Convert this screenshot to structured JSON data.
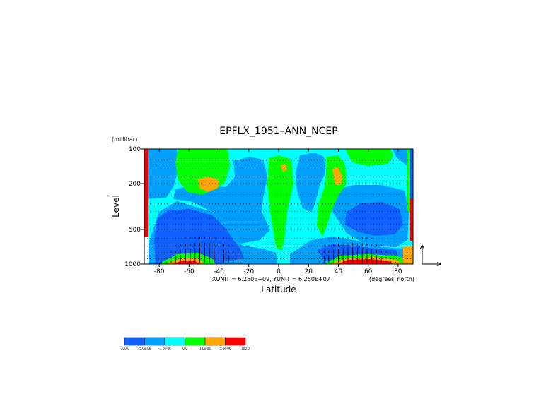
{
  "chart_data": {
    "type": "heatmap",
    "title": "EPFLX_1951–ANN_NCEP",
    "xlabel": "Latitude",
    "ylabel": "Level",
    "y_units": "(millibar)",
    "x_units": "(degrees_north)",
    "vector_units_label": "XUNIT = 6.250E+09, YUNIT = 6.250E+07",
    "xlim": [
      -90,
      90
    ],
    "ylim": [
      1000,
      100
    ],
    "y_scale": "log",
    "x_ticks": [
      {
        "value": -80,
        "label": "-80"
      },
      {
        "value": -60,
        "label": "-60"
      },
      {
        "value": -40,
        "label": "-40"
      },
      {
        "value": -20,
        "label": "-20"
      },
      {
        "value": 0,
        "label": "0"
      },
      {
        "value": 20,
        "label": "20"
      },
      {
        "value": 40,
        "label": "40"
      },
      {
        "value": 60,
        "label": "60"
      },
      {
        "value": 80,
        "label": "80"
      }
    ],
    "y_ticks": [
      {
        "value": 100,
        "label": "100"
      },
      {
        "value": 200,
        "label": "200"
      },
      {
        "value": 500,
        "label": "500"
      },
      {
        "value": 1000,
        "label": "1000"
      }
    ],
    "grid_levels": [
      100,
      125,
      150,
      175,
      200,
      250,
      300,
      350,
      400,
      450,
      500,
      600,
      700,
      800,
      900
    ],
    "colorbar": {
      "colors": [
        "#1060ff",
        "#00a0ff",
        "#00ffff",
        "#00ff00",
        "#ffa500",
        "#ff0000"
      ],
      "labels": [
        "-100.0",
        "-5.0e-06",
        "-1.0e-06",
        "0.0",
        "1.0e-06",
        "5.0e-06",
        "100.0"
      ]
    }
  }
}
